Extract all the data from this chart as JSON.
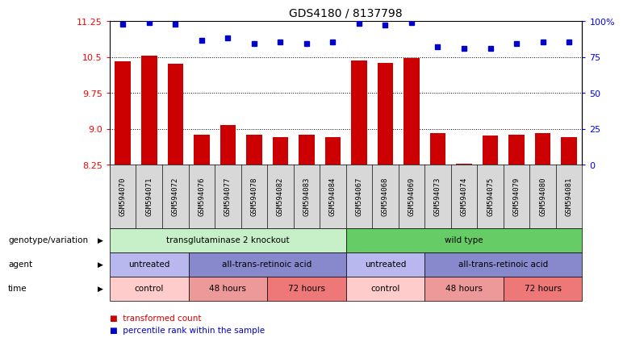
{
  "title": "GDS4180 / 8137798",
  "samples": [
    "GSM594070",
    "GSM594071",
    "GSM594072",
    "GSM594076",
    "GSM594077",
    "GSM594078",
    "GSM594082",
    "GSM594083",
    "GSM594084",
    "GSM594067",
    "GSM594068",
    "GSM594069",
    "GSM594073",
    "GSM594074",
    "GSM594075",
    "GSM594079",
    "GSM594080",
    "GSM594081"
  ],
  "red_values": [
    10.4,
    10.52,
    10.35,
    8.87,
    9.07,
    8.87,
    8.83,
    8.87,
    8.83,
    10.43,
    10.38,
    10.47,
    8.9,
    8.27,
    8.85,
    8.88,
    8.9,
    8.83
  ],
  "blue_values": [
    11.18,
    11.22,
    11.18,
    10.85,
    10.9,
    10.78,
    10.82,
    10.78,
    10.82,
    11.2,
    11.16,
    11.22,
    10.72,
    10.67,
    10.68,
    10.78,
    10.82,
    10.82
  ],
  "ymin": 8.25,
  "ymax": 11.25,
  "yticks_left": [
    8.25,
    9.0,
    9.75,
    10.5,
    11.25
  ],
  "yticks_right": [
    0,
    25,
    50,
    75,
    100
  ],
  "yticks_right_labels": [
    "0",
    "25",
    "50",
    "75",
    "100%"
  ],
  "grid_lines": [
    9.0,
    9.75,
    10.5
  ],
  "genotype_groups": [
    {
      "label": "transglutaminase 2 knockout",
      "start": 0,
      "end": 9,
      "color": "#c8f0c8"
    },
    {
      "label": "wild type",
      "start": 9,
      "end": 18,
      "color": "#66cc66"
    }
  ],
  "agent_groups": [
    {
      "label": "untreated",
      "start": 0,
      "end": 3,
      "color": "#b8b8ee"
    },
    {
      "label": "all-trans-retinoic acid",
      "start": 3,
      "end": 9,
      "color": "#8888cc"
    },
    {
      "label": "untreated",
      "start": 9,
      "end": 12,
      "color": "#b8b8ee"
    },
    {
      "label": "all-trans-retinoic acid",
      "start": 12,
      "end": 18,
      "color": "#8888cc"
    }
  ],
  "time_groups": [
    {
      "label": "control",
      "start": 0,
      "end": 3,
      "color": "#ffcccc"
    },
    {
      "label": "48 hours",
      "start": 3,
      "end": 6,
      "color": "#ee9999"
    },
    {
      "label": "72 hours",
      "start": 6,
      "end": 9,
      "color": "#ee7777"
    },
    {
      "label": "control",
      "start": 9,
      "end": 12,
      "color": "#ffcccc"
    },
    {
      "label": "48 hours",
      "start": 12,
      "end": 15,
      "color": "#ee9999"
    },
    {
      "label": "72 hours",
      "start": 15,
      "end": 18,
      "color": "#ee7777"
    }
  ],
  "red_color": "#cc0000",
  "blue_color": "#0000cc",
  "bar_width": 0.6,
  "legend_transformed": "transformed count",
  "legend_percentile": "percentile rank within the sample",
  "row_labels": [
    "genotype/variation",
    "agent",
    "time"
  ]
}
